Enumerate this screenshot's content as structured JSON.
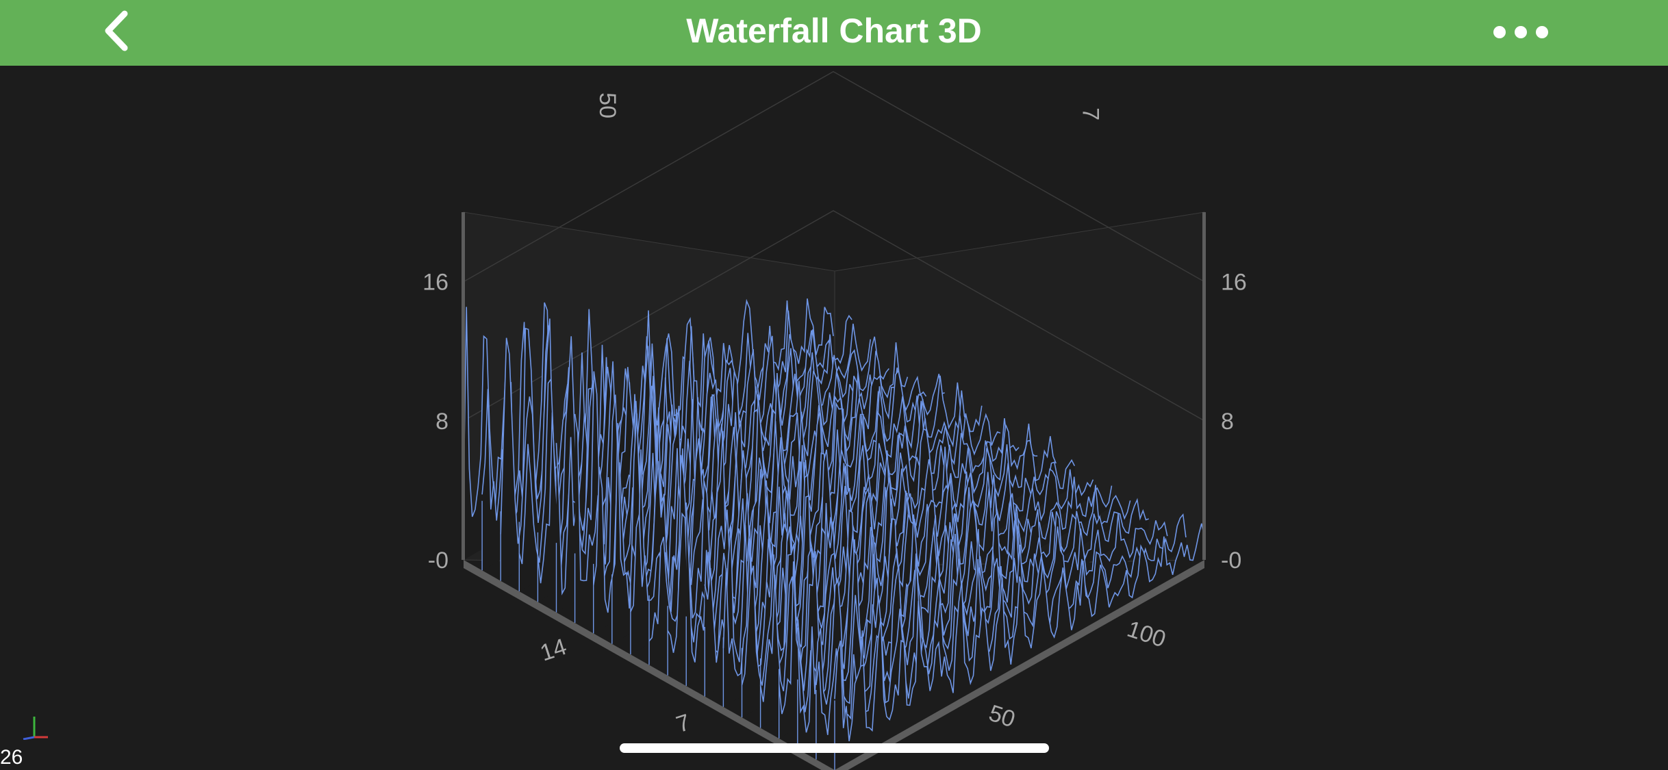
{
  "header": {
    "title": "Waterfall Chart 3D",
    "back_icon": "chevron-left-icon",
    "more_icon": "ellipsis-icon"
  },
  "status": {
    "fps": "26"
  },
  "colors": {
    "nav": "#63b157",
    "background": "#1c1c1c",
    "series": "#6f96e6",
    "axis": "#5a5a5a",
    "tick": "#a9a9a9"
  },
  "chart_data": {
    "type": "waterfall-3d",
    "title": "Waterfall Chart 3D",
    "y_axis": {
      "ticks": [
        "-0",
        "8",
        "16"
      ],
      "range": [
        0,
        20
      ]
    },
    "x_axis": {
      "ticks": [
        "50",
        "100"
      ],
      "range": [
        0,
        128
      ]
    },
    "z_axis": {
      "ticks": [
        "14",
        "7"
      ],
      "range": [
        0,
        20
      ]
    },
    "slice_count": 21,
    "points_per_slice": 128
  }
}
